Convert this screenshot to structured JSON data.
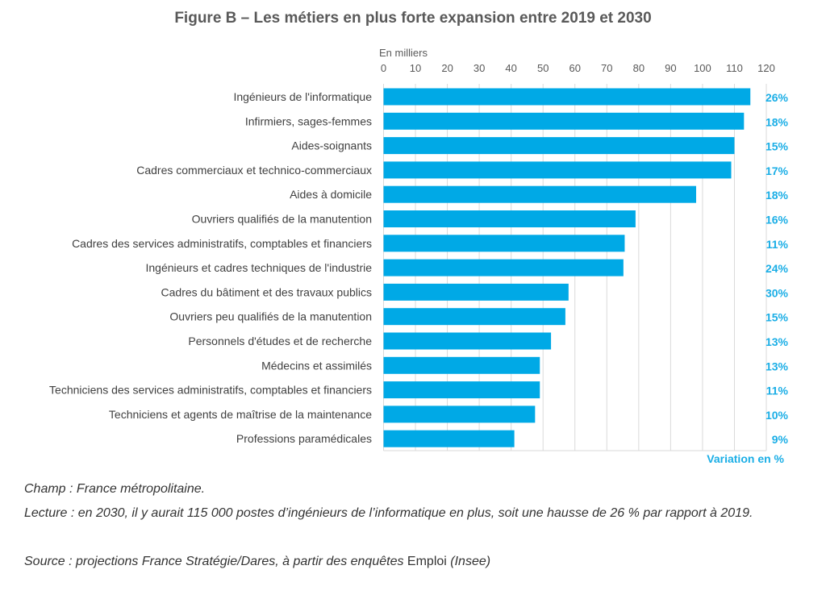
{
  "chart_data": {
    "type": "bar",
    "orientation": "horizontal",
    "title": "Figure B – Les métiers en plus forte expansion entre 2019 et 2030",
    "xlabel": "En milliers",
    "xlim": [
      0,
      120
    ],
    "xticks": [
      0,
      10,
      20,
      30,
      40,
      50,
      60,
      70,
      80,
      90,
      100,
      110,
      120
    ],
    "grid": true,
    "bar_color": "#00a9e6",
    "annotation_color": "#1aaee6",
    "categories": [
      "Ingénieurs de l'informatique",
      "Infirmiers, sages-femmes",
      "Aides-soignants",
      "Cadres commerciaux et technico-commerciaux",
      "Aides à domicile",
      "Ouvriers qualifiés de la manutention",
      "Cadres des services administratifs, comptables et financiers",
      "Ingénieurs et cadres techniques de l'industrie",
      "Cadres du bâtiment et des travaux publics",
      "Ouvriers peu qualifiés de la manutention",
      "Personnels d'études et de recherche",
      "Médecins et assimilés",
      "Techniciens des services administratifs, comptables et financiers",
      "Techniciens et agents de maîtrise de la maintenance",
      "Professions paramédicales"
    ],
    "values": [
      115,
      113,
      110,
      109,
      98,
      79,
      75.6,
      75.2,
      58,
      57,
      52.5,
      49,
      49,
      47.5,
      41
    ],
    "variation_label": "Variation en %",
    "variation": [
      "26%",
      "18%",
      "15%",
      "17%",
      "18%",
      "16%",
      "11%",
      "24%",
      "30%",
      "15%",
      "13%",
      "13%",
      "11%",
      "10%",
      "9%"
    ]
  },
  "footnotes": {
    "champ": "Champ : France métropolitaine.",
    "lecture": "Lecture : en 2030, il y aurait 115 000 postes d’ingénieurs de l’informatique en plus, soit une hausse de 26 % par rapport à 2019.",
    "source_prefix": "Source : projections France Stratégie/Dares, à partir des enquêtes ",
    "source_emploi": "Emploi",
    "source_suffix": " (Insee)"
  }
}
